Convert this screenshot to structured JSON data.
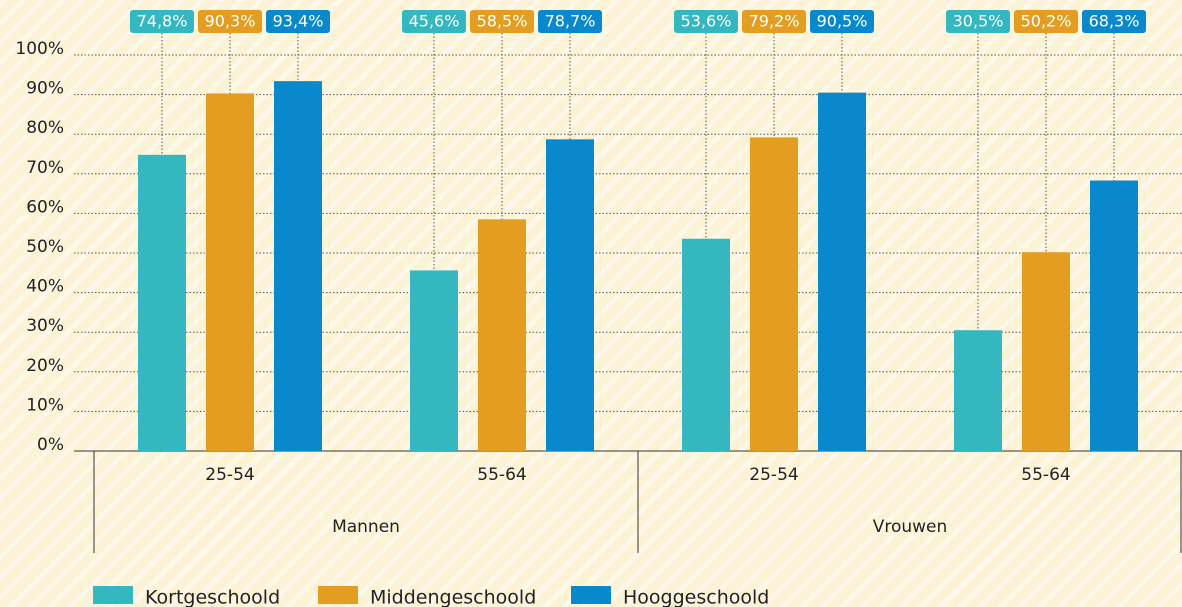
{
  "chart_data": {
    "type": "bar",
    "categories": [
      "25-54",
      "55-64",
      "25-54",
      "55-64"
    ],
    "groups": [
      "Mannen",
      "Vrouwen"
    ],
    "series": [
      {
        "name": "Kortgeschoold",
        "color": "#33b8bf",
        "values": [
          74.8,
          45.6,
          53.6,
          30.5
        ],
        "value_labels": [
          "74,8%",
          "45,6%",
          "53,6%",
          "30,5%"
        ]
      },
      {
        "name": "Middengeschoold",
        "color": "#e39e21",
        "values": [
          90.3,
          58.5,
          79.2,
          50.2
        ],
        "value_labels": [
          "90,3%",
          "58,5%",
          "79,2%",
          "50,2%"
        ]
      },
      {
        "name": "Hooggeschoold",
        "color": "#0a88cc",
        "values": [
          93.4,
          78.7,
          90.5,
          68.3
        ],
        "value_labels": [
          "93,4%",
          "78,7%",
          "90,5%",
          "68,3%"
        ]
      }
    ],
    "ylim": [
      0,
      100
    ],
    "yticks": [
      {
        "value": 0,
        "label": "0%"
      },
      {
        "value": 10,
        "label": "10%"
      },
      {
        "value": 20,
        "label": "20%"
      },
      {
        "value": 30,
        "label": "30%"
      },
      {
        "value": 40,
        "label": "40%"
      },
      {
        "value": 50,
        "label": "50%"
      },
      {
        "value": 60,
        "label": "60%"
      },
      {
        "value": 70,
        "label": "70%"
      },
      {
        "value": 80,
        "label": "80%"
      },
      {
        "value": 90,
        "label": "90%"
      },
      {
        "value": 100,
        "label": "100%"
      }
    ],
    "grid": true,
    "legend": "bottom"
  }
}
